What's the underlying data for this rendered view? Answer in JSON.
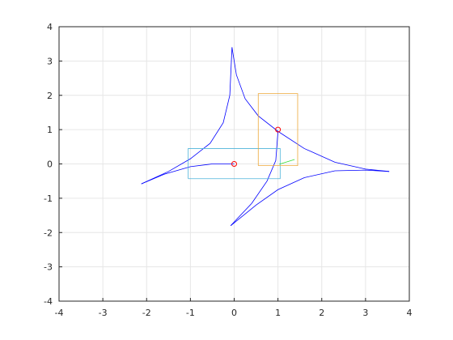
{
  "chart_data": {
    "type": "line",
    "xlim": [
      -4,
      4
    ],
    "ylim": [
      -4,
      4
    ],
    "xticks": [
      -4,
      -3,
      -2,
      -1,
      0,
      1,
      2,
      3,
      4
    ],
    "yticks": [
      -4,
      -3,
      -2,
      -1,
      0,
      1,
      2,
      3,
      4
    ],
    "grid": true,
    "series": [
      {
        "color": "#0000ff",
        "x": [
          -2.12,
          -1.5,
          -1.0,
          -0.55,
          -0.25,
          -0.1,
          -0.05
        ],
        "y": [
          -0.58,
          -0.22,
          0.15,
          0.6,
          1.2,
          2.0,
          3.4
        ]
      },
      {
        "color": "#0000ff",
        "x": [
          -2.12,
          -1.6,
          -1.0,
          -0.5,
          0
        ],
        "y": [
          -0.58,
          -0.3,
          -0.08,
          0.0,
          0
        ]
      },
      {
        "color": "#0000ff",
        "x": [
          -0.05,
          0.05,
          0.25,
          0.55,
          1.0,
          1.6,
          2.3,
          3.0,
          3.54
        ],
        "y": [
          3.4,
          2.6,
          1.9,
          1.4,
          0.95,
          0.45,
          0.05,
          -0.15,
          -0.22
        ]
      },
      {
        "color": "#0000ff",
        "x": [
          3.54,
          3.0,
          2.3,
          1.6,
          1.0,
          0.5,
          -0.08
        ],
        "y": [
          -0.22,
          -0.18,
          -0.2,
          -0.4,
          -0.75,
          -1.2,
          -1.8
        ]
      },
      {
        "color": "#0000ff",
        "x": [
          -0.08,
          0.4,
          0.75,
          0.95,
          1.0
        ],
        "y": [
          -1.8,
          -1.15,
          -0.5,
          0.1,
          0.95
        ]
      },
      {
        "color": "#4db3d9",
        "x": [
          -1.05,
          1.05,
          1.05,
          -1.05,
          -1.05
        ],
        "y": [
          -0.43,
          -0.43,
          0.45,
          0.45,
          -0.43
        ]
      },
      {
        "color": "#eda83a",
        "x": [
          0.55,
          1.45,
          1.45,
          0.55,
          0.55
        ],
        "y": [
          -0.05,
          -0.05,
          2.05,
          2.05,
          -0.05
        ]
      },
      {
        "color": "#33dd33",
        "x": [
          1.03,
          1.38
        ],
        "y": [
          -0.01,
          0.13
        ]
      },
      {
        "color": "#ff0000",
        "marker": "o",
        "x": [
          0,
          1
        ],
        "y": [
          0,
          1
        ]
      }
    ]
  }
}
